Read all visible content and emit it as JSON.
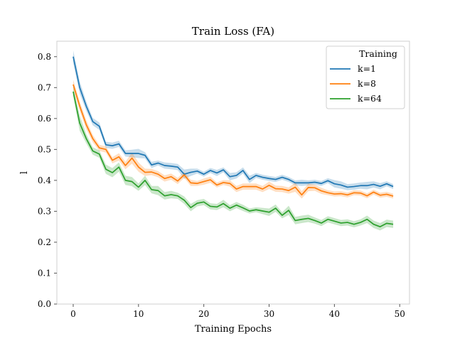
{
  "chart_data": {
    "type": "line",
    "title": "Train Loss (FA)",
    "xlabel": "Training Epochs",
    "ylabel": "l",
    "xlim": [
      -2.5,
      51.5
    ],
    "ylim": [
      0.0,
      0.85
    ],
    "xticks": [
      0,
      10,
      20,
      30,
      40,
      50
    ],
    "yticks": [
      0.0,
      0.1,
      0.2,
      0.3,
      0.4,
      0.5,
      0.6,
      0.7,
      0.8
    ],
    "xtick_labels": [
      "0",
      "10",
      "20",
      "30",
      "40",
      "50"
    ],
    "ytick_labels": [
      "0.0",
      "0.1",
      "0.2",
      "0.3",
      "0.4",
      "0.5",
      "0.6",
      "0.7",
      "0.8"
    ],
    "legend": {
      "title": "Training",
      "location": "top-right"
    },
    "x": [
      0,
      1,
      2,
      3,
      4,
      5,
      6,
      7,
      8,
      9,
      10,
      11,
      12,
      13,
      14,
      15,
      16,
      17,
      18,
      19,
      20,
      21,
      22,
      23,
      24,
      25,
      26,
      27,
      28,
      29,
      30,
      31,
      32,
      33,
      34,
      35,
      36,
      37,
      38,
      39,
      40,
      41,
      42,
      43,
      44,
      45,
      46,
      47,
      48,
      49
    ],
    "series": [
      {
        "name": "k=1",
        "color": "#1f77b4",
        "values": [
          0.8,
          0.7,
          0.64,
          0.59,
          0.575,
          0.515,
          0.512,
          0.518,
          0.487,
          0.487,
          0.487,
          0.481,
          0.45,
          0.456,
          0.448,
          0.446,
          0.443,
          0.42,
          0.426,
          0.43,
          0.42,
          0.432,
          0.424,
          0.434,
          0.412,
          0.416,
          0.432,
          0.403,
          0.416,
          0.41,
          0.406,
          0.403,
          0.41,
          0.403,
          0.392,
          0.392,
          0.392,
          0.394,
          0.39,
          0.399,
          0.389,
          0.385,
          0.378,
          0.38,
          0.383,
          0.383,
          0.387,
          0.381,
          0.389,
          0.38
        ],
        "band": [
          0.02,
          0.02,
          0.015,
          0.012,
          0.012,
          0.01,
          0.01,
          0.01,
          0.01,
          0.012,
          0.015,
          0.01,
          0.01,
          0.008,
          0.01,
          0.01,
          0.01,
          0.015,
          0.012,
          0.008,
          0.008,
          0.008,
          0.01,
          0.008,
          0.012,
          0.01,
          0.01,
          0.012,
          0.008,
          0.008,
          0.008,
          0.008,
          0.008,
          0.008,
          0.008,
          0.01,
          0.008,
          0.008,
          0.008,
          0.008,
          0.012,
          0.012,
          0.01,
          0.01,
          0.01,
          0.012,
          0.01,
          0.01,
          0.008,
          0.008
        ]
      },
      {
        "name": "k=8",
        "color": "#ff7f0e",
        "values": [
          0.71,
          0.64,
          0.58,
          0.535,
          0.505,
          0.5,
          0.465,
          0.476,
          0.448,
          0.472,
          0.443,
          0.426,
          0.427,
          0.42,
          0.406,
          0.412,
          0.398,
          0.418,
          0.392,
          0.39,
          0.396,
          0.402,
          0.385,
          0.393,
          0.39,
          0.372,
          0.38,
          0.38,
          0.38,
          0.372,
          0.384,
          0.373,
          0.372,
          0.367,
          0.378,
          0.353,
          0.377,
          0.376,
          0.366,
          0.36,
          0.356,
          0.357,
          0.353,
          0.36,
          0.359,
          0.35,
          0.362,
          0.352,
          0.355,
          0.349
        ],
        "band": [
          0.015,
          0.015,
          0.015,
          0.012,
          0.01,
          0.01,
          0.01,
          0.012,
          0.012,
          0.018,
          0.015,
          0.012,
          0.01,
          0.01,
          0.01,
          0.01,
          0.01,
          0.01,
          0.01,
          0.008,
          0.01,
          0.01,
          0.008,
          0.008,
          0.01,
          0.01,
          0.01,
          0.01,
          0.01,
          0.01,
          0.012,
          0.01,
          0.01,
          0.01,
          0.015,
          0.012,
          0.012,
          0.01,
          0.01,
          0.008,
          0.008,
          0.008,
          0.008,
          0.008,
          0.008,
          0.008,
          0.008,
          0.008,
          0.008,
          0.008
        ]
      },
      {
        "name": "k=64",
        "color": "#2ca02c",
        "values": [
          0.687,
          0.585,
          0.535,
          0.495,
          0.485,
          0.436,
          0.425,
          0.443,
          0.4,
          0.396,
          0.378,
          0.4,
          0.37,
          0.367,
          0.35,
          0.354,
          0.35,
          0.336,
          0.312,
          0.326,
          0.33,
          0.316,
          0.314,
          0.325,
          0.31,
          0.32,
          0.311,
          0.301,
          0.305,
          0.301,
          0.297,
          0.31,
          0.287,
          0.303,
          0.27,
          0.274,
          0.277,
          0.27,
          0.262,
          0.274,
          0.268,
          0.262,
          0.264,
          0.258,
          0.264,
          0.274,
          0.258,
          0.25,
          0.261,
          0.258
        ],
        "band": [
          0.015,
          0.025,
          0.015,
          0.012,
          0.012,
          0.015,
          0.015,
          0.015,
          0.015,
          0.015,
          0.012,
          0.015,
          0.012,
          0.015,
          0.012,
          0.012,
          0.01,
          0.012,
          0.012,
          0.01,
          0.01,
          0.01,
          0.01,
          0.012,
          0.01,
          0.01,
          0.01,
          0.008,
          0.008,
          0.01,
          0.012,
          0.012,
          0.01,
          0.015,
          0.012,
          0.012,
          0.012,
          0.01,
          0.01,
          0.01,
          0.01,
          0.01,
          0.01,
          0.01,
          0.01,
          0.012,
          0.012,
          0.012,
          0.012,
          0.012
        ]
      }
    ]
  }
}
